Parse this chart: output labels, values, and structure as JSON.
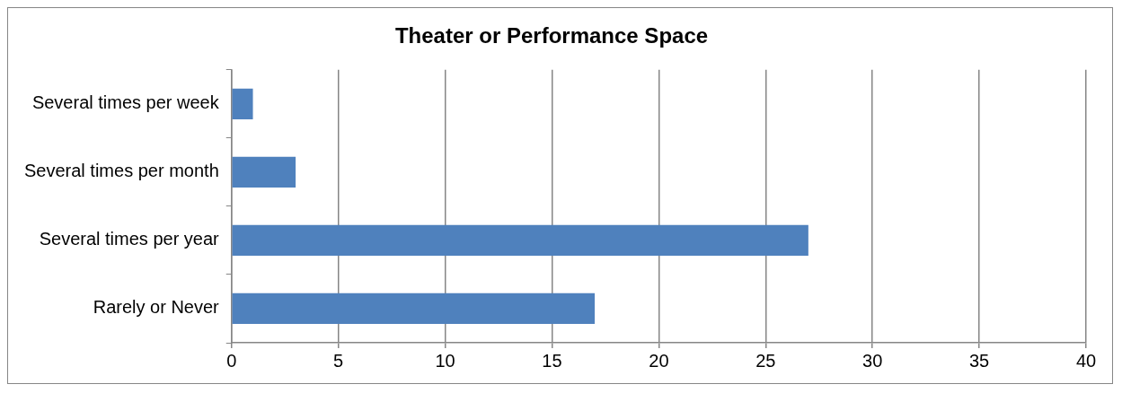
{
  "chart_data": {
    "type": "bar",
    "orientation": "horizontal",
    "title": "Theater or Performance Space",
    "categories": [
      "Several times per week",
      "Several times per month",
      "Several times per year",
      "Rarely or Never"
    ],
    "values": [
      1,
      3,
      27,
      17
    ],
    "color": "#4f81bd",
    "xlim": [
      0,
      40
    ],
    "xticks": [
      0,
      5,
      10,
      15,
      20,
      25,
      30,
      35,
      40
    ],
    "grid": "x",
    "legend": false
  }
}
